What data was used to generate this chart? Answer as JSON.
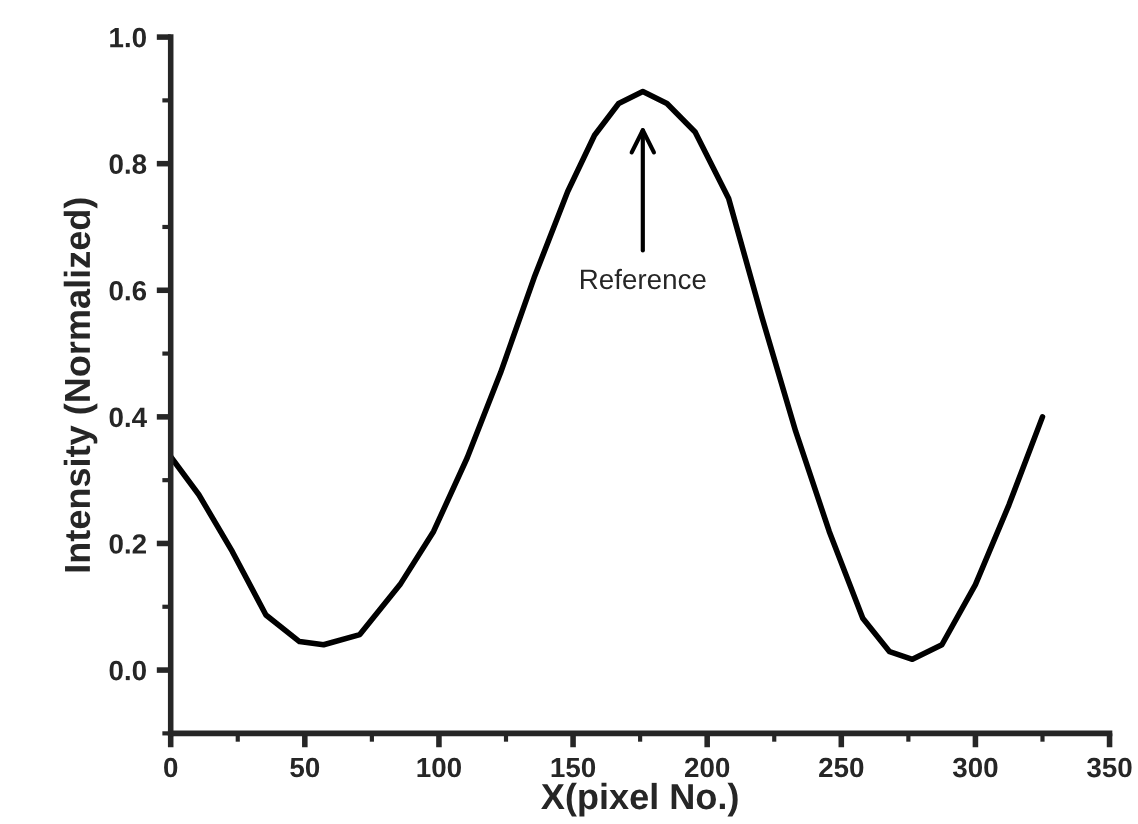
{
  "chart_data": {
    "type": "line",
    "xlabel": "X(pixel No.)",
    "ylabel": "Intensity (Normalized)",
    "x": [
      0,
      10.5,
      23,
      35.5,
      48,
      57,
      70.5,
      85.5,
      98,
      110.5,
      123,
      135.5,
      148,
      158,
      167,
      176,
      185,
      195.5,
      208,
      220.5,
      233,
      245.5,
      258,
      268,
      276.5,
      287.5,
      300,
      312.5,
      325
    ],
    "series": [
      {
        "color": "#000000",
        "values": [
          0.337,
          0.277,
          0.187,
          0.087,
          0.045,
          0.04,
          0.056,
          0.135,
          0.219,
          0.335,
          0.47,
          0.62,
          0.756,
          0.845,
          0.895,
          0.914,
          0.895,
          0.85,
          0.745,
          0.556,
          0.377,
          0.219,
          0.082,
          0.029,
          0.017,
          0.04,
          0.135,
          0.261,
          0.4
        ]
      }
    ],
    "xlim": [
      0,
      350
    ],
    "ylim": [
      -0.1,
      1.0
    ],
    "xticks": [
      0,
      50,
      100,
      150,
      200,
      250,
      300,
      350
    ],
    "yticks": [
      {
        "value": 0,
        "label": "0.0"
      },
      {
        "value": 0.2,
        "label": "0.2"
      },
      {
        "value": 0.4,
        "label": "0.4"
      },
      {
        "value": 0.6,
        "label": "0.6"
      },
      {
        "value": 0.8,
        "label": "0.8"
      },
      {
        "value": 1,
        "label": "1.0"
      }
    ],
    "annotations": [
      "Reference"
    ],
    "grid": false,
    "legend": false,
    "marker": "none",
    "line_style": "solid"
  }
}
